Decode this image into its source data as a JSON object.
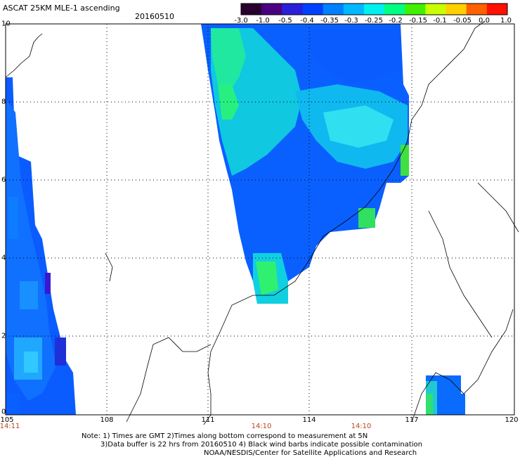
{
  "header": {
    "title": "ASCAT 25KM MLE-1 ascending",
    "date": "20160510"
  },
  "colorbar": {
    "labels": [
      "-3.0",
      "-1.0",
      "-0.5",
      "-0.4",
      "-0.35",
      "-0.3",
      "-0.25",
      "-0.2",
      "-0.15",
      "-0.1",
      "-0.05",
      "0.0",
      "1.0"
    ],
    "colors": [
      "#2a0030",
      "#4b0082",
      "#2a1fd8",
      "#0040ff",
      "#0080ff",
      "#00b8ff",
      "#00f0f0",
      "#00ff80",
      "#40f000",
      "#c8ff00",
      "#ffd000",
      "#ff6000",
      "#ff1000"
    ]
  },
  "axes": {
    "x_ticks": [
      "105",
      "108",
      "111",
      "114",
      "117",
      "120"
    ],
    "y_ticks": [
      "0",
      "2",
      "4",
      "6",
      "8",
      "10"
    ],
    "times": [
      "14:11",
      "14:10",
      "14:10"
    ]
  },
  "notes": {
    "line1": "Note: 1) Times are GMT 2)Times along bottom correspond to measurement at 5N",
    "line2": "3)Data buffer is 22 hrs from 20160510 4) Black wind barbs indicate possible contamination",
    "line3": "NOAA/NESDIS/Center for Satellite Applications and Research"
  }
}
